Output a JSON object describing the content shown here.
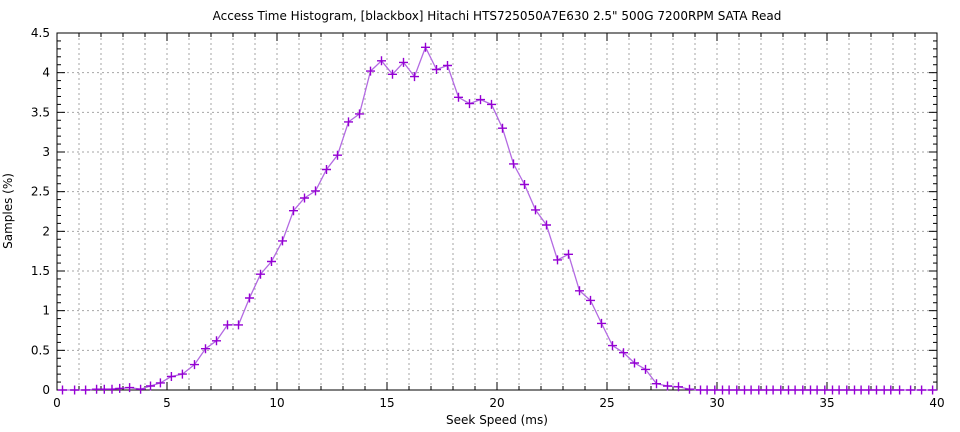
{
  "chart_data": {
    "type": "line",
    "title": "Access Time Histogram, [blackbox] Hitachi HTS725050A7E630 2.5\" 500G 7200RPM SATA Read",
    "xlabel": "Seek Speed (ms)",
    "ylabel": "Samples (%)",
    "xlim": [
      0,
      40
    ],
    "ylim": [
      0,
      4.5
    ],
    "xticks": [
      0,
      5,
      10,
      15,
      20,
      25,
      30,
      35,
      40
    ],
    "yticks": [
      0,
      0.5,
      1,
      1.5,
      2,
      2.5,
      3,
      3.5,
      4,
      4.5
    ],
    "x_minor_step": 1,
    "y_minor_step": 0.1,
    "grid": {
      "vertical_step_ms": 1,
      "horizontal_step_pct": 0.5,
      "style": "dashed",
      "color": "#a6a6a6"
    },
    "legend_position": "none",
    "series": [
      {
        "name": "samples",
        "marker": "plus",
        "line_color": "#b36ae2",
        "marker_color": "#9400d3",
        "points": [
          [
            0.25,
            0
          ],
          [
            0.8,
            0
          ],
          [
            1.3,
            0
          ],
          [
            1.8,
            0.01
          ],
          [
            2.15,
            0.01
          ],
          [
            2.5,
            0.01
          ],
          [
            2.85,
            0.02
          ],
          [
            3.3,
            0.03
          ],
          [
            3.8,
            0.01
          ],
          [
            4.25,
            0.05
          ],
          [
            4.7,
            0.09
          ],
          [
            5.2,
            0.17
          ],
          [
            5.7,
            0.2
          ],
          [
            6.25,
            0.32
          ],
          [
            6.75,
            0.52
          ],
          [
            7.25,
            0.62
          ],
          [
            7.75,
            0.82
          ],
          [
            8.25,
            0.82
          ],
          [
            8.75,
            1.16
          ],
          [
            9.25,
            1.46
          ],
          [
            9.75,
            1.62
          ],
          [
            10.25,
            1.88
          ],
          [
            10.75,
            2.26
          ],
          [
            11.25,
            2.42
          ],
          [
            11.75,
            2.51
          ],
          [
            12.25,
            2.78
          ],
          [
            12.75,
            2.96
          ],
          [
            13.25,
            3.38
          ],
          [
            13.75,
            3.48
          ],
          [
            14.25,
            4.02
          ],
          [
            14.75,
            4.15
          ],
          [
            15.25,
            3.98
          ],
          [
            15.75,
            4.13
          ],
          [
            16.25,
            3.95
          ],
          [
            16.75,
            4.32
          ],
          [
            17.25,
            4.04
          ],
          [
            17.75,
            4.09
          ],
          [
            18.25,
            3.69
          ],
          [
            18.75,
            3.61
          ],
          [
            19.25,
            3.66
          ],
          [
            19.75,
            3.6
          ],
          [
            20.25,
            3.3
          ],
          [
            20.75,
            2.85
          ],
          [
            21.25,
            2.59
          ],
          [
            21.75,
            2.27
          ],
          [
            22.25,
            2.08
          ],
          [
            22.75,
            1.64
          ],
          [
            23.25,
            1.71
          ],
          [
            23.75,
            1.25
          ],
          [
            24.25,
            1.13
          ],
          [
            24.75,
            0.84
          ],
          [
            25.25,
            0.56
          ],
          [
            25.75,
            0.47
          ],
          [
            26.25,
            0.34
          ],
          [
            26.75,
            0.26
          ],
          [
            27.25,
            0.08
          ],
          [
            27.75,
            0.05
          ],
          [
            28.25,
            0.04
          ],
          [
            28.75,
            0.01
          ],
          [
            29.25,
            0
          ],
          [
            29.55,
            0
          ],
          [
            29.9,
            0
          ],
          [
            30.25,
            0
          ],
          [
            30.55,
            0
          ],
          [
            30.9,
            0
          ],
          [
            31.25,
            0
          ],
          [
            31.55,
            0
          ],
          [
            31.9,
            0
          ],
          [
            32.25,
            0
          ],
          [
            32.55,
            0
          ],
          [
            32.9,
            0
          ],
          [
            33.25,
            0
          ],
          [
            33.55,
            0
          ],
          [
            33.9,
            0
          ],
          [
            34.25,
            0
          ],
          [
            34.55,
            0
          ],
          [
            34.9,
            0
          ],
          [
            35.25,
            0
          ],
          [
            35.55,
            0
          ],
          [
            35.9,
            0
          ],
          [
            36.25,
            0
          ],
          [
            36.55,
            0
          ],
          [
            36.9,
            0
          ],
          [
            37.25,
            0
          ],
          [
            37.6,
            0
          ],
          [
            37.9,
            0
          ],
          [
            38.3,
            0
          ],
          [
            38.8,
            0
          ],
          [
            39.3,
            0
          ],
          [
            39.8,
            0
          ]
        ]
      }
    ]
  },
  "colors": {
    "background": "#ffffff",
    "border": "#000000",
    "grid": "#a6a6a6",
    "line": "#b36ae2",
    "marker": "#9400d3",
    "text": "#000000"
  }
}
